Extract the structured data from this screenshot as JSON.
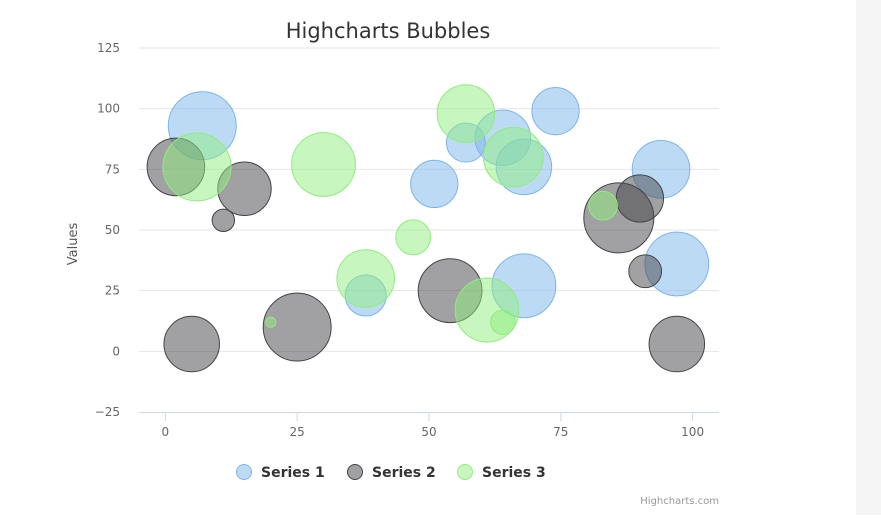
{
  "chart_data": {
    "type": "scatter",
    "subtype": "bubble",
    "title": "Highcharts Bubbles",
    "xlabel": "",
    "ylabel": "Values",
    "xlim": [
      -5,
      105
    ],
    "ylim": [
      -25,
      125
    ],
    "x_ticks": [
      "0",
      "25",
      "50",
      "75",
      "100"
    ],
    "y_ticks": [
      "125",
      "100",
      "75",
      "50",
      "25",
      "0",
      "−25"
    ],
    "grid": true,
    "legend_position": "bottom-center",
    "credits": "Highcharts.com",
    "series": [
      {
        "name": "Series 1",
        "color": "#7cb5ec",
        "points": [
          {
            "x": 7,
            "y": 93,
            "z": 33
          },
          {
            "x": 57,
            "y": 86,
            "z": 19
          },
          {
            "x": 64,
            "y": 88,
            "z": 27
          },
          {
            "x": 74,
            "y": 99,
            "z": 23
          },
          {
            "x": 51,
            "y": 69,
            "z": 23
          },
          {
            "x": 94,
            "y": 75,
            "z": 28
          },
          {
            "x": 68,
            "y": 76,
            "z": 27
          },
          {
            "x": 38,
            "y": 23,
            "z": 20
          },
          {
            "x": 68,
            "y": 27,
            "z": 31
          },
          {
            "x": 97,
            "y": 36,
            "z": 31
          }
        ]
      },
      {
        "name": "Series 2",
        "color": "#434348",
        "points": [
          {
            "x": 2,
            "y": 76,
            "z": 28
          },
          {
            "x": 15,
            "y": 67,
            "z": 26
          },
          {
            "x": 11,
            "y": 54,
            "z": 11
          },
          {
            "x": 5,
            "y": 3,
            "z": 27
          },
          {
            "x": 25,
            "y": 10,
            "z": 33
          },
          {
            "x": 54,
            "y": 25,
            "z": 31
          },
          {
            "x": 86,
            "y": 55,
            "z": 34
          },
          {
            "x": 90,
            "y": 63,
            "z": 23
          },
          {
            "x": 91,
            "y": 33,
            "z": 16
          },
          {
            "x": 97,
            "y": 3,
            "z": 27
          }
        ]
      },
      {
        "name": "Series 3",
        "color": "#90ed7d",
        "points": [
          {
            "x": 6,
            "y": 76,
            "z": 33
          },
          {
            "x": 30,
            "y": 77,
            "z": 31
          },
          {
            "x": 47,
            "y": 47,
            "z": 17
          },
          {
            "x": 38,
            "y": 30,
            "z": 28
          },
          {
            "x": 20,
            "y": 12,
            "z": 5
          },
          {
            "x": 57,
            "y": 98,
            "z": 28
          },
          {
            "x": 66,
            "y": 80,
            "z": 29
          },
          {
            "x": 61,
            "y": 17,
            "z": 31
          },
          {
            "x": 64,
            "y": 12,
            "z": 12
          },
          {
            "x": 83,
            "y": 60,
            "z": 14
          }
        ]
      }
    ]
  }
}
